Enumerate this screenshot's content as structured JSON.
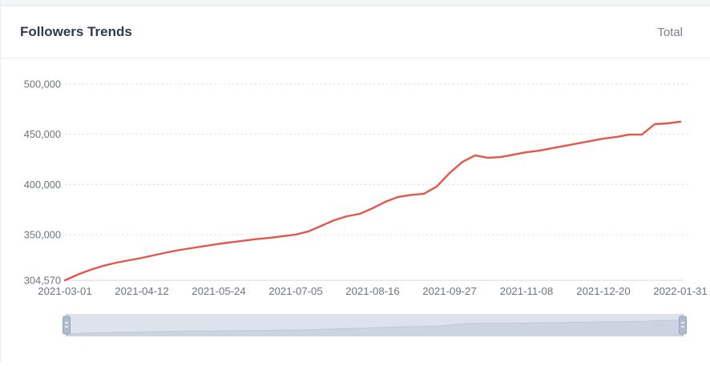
{
  "header": {
    "title": "Followers Trends",
    "total_label": "Total"
  },
  "colors": {
    "line": "#e4564c",
    "grid": "#d9dadd",
    "axis_line": "#d4d7db",
    "axis_label": "#6e747d",
    "title": "#333b48",
    "legend": "#7a8290",
    "slider_track": "#e7ebf1",
    "slider_shadow_fill": "#d3dae4",
    "slider_shadow_line": "#c2ccd9",
    "slider_handle": "#afbccd",
    "slider_handle_border": "#96a6ba"
  },
  "chart_data": {
    "type": "line",
    "title": "Followers Trends",
    "series_name": "Total",
    "x": [
      "2021-03-01",
      "2021-03-08",
      "2021-03-15",
      "2021-03-22",
      "2021-03-29",
      "2021-04-05",
      "2021-04-12",
      "2021-04-19",
      "2021-04-26",
      "2021-05-03",
      "2021-05-10",
      "2021-05-17",
      "2021-05-24",
      "2021-05-31",
      "2021-06-07",
      "2021-06-14",
      "2021-06-21",
      "2021-06-28",
      "2021-07-05",
      "2021-07-12",
      "2021-07-19",
      "2021-07-26",
      "2021-08-02",
      "2021-08-09",
      "2021-08-16",
      "2021-08-23",
      "2021-08-30",
      "2021-09-06",
      "2021-09-13",
      "2021-09-20",
      "2021-09-27",
      "2021-10-04",
      "2021-10-11",
      "2021-10-18",
      "2021-10-25",
      "2021-11-01",
      "2021-11-08",
      "2021-11-15",
      "2021-11-22",
      "2021-11-29",
      "2021-12-06",
      "2021-12-13",
      "2021-12-20",
      "2021-12-27",
      "2022-01-03",
      "2022-01-10",
      "2022-01-17",
      "2022-01-24",
      "2022-01-31"
    ],
    "values": [
      304570,
      310200,
      315000,
      319000,
      322100,
      324500,
      326900,
      329700,
      332500,
      334900,
      336900,
      338900,
      340900,
      342500,
      344100,
      345700,
      346900,
      348500,
      350100,
      353300,
      358800,
      364400,
      368400,
      370800,
      376400,
      382800,
      387600,
      389600,
      390800,
      398000,
      411400,
      422500,
      428900,
      426500,
      427300,
      429700,
      432100,
      433700,
      436100,
      438500,
      440900,
      443300,
      445700,
      447300,
      449700,
      449700,
      460100,
      460900,
      462500
    ],
    "ylim": [
      304570,
      500000
    ],
    "y_ticks": [
      {
        "value": 304570,
        "label": "304,570"
      },
      {
        "value": 350000,
        "label": "350,000"
      },
      {
        "value": 400000,
        "label": "400,000"
      },
      {
        "value": 450000,
        "label": "450,000"
      },
      {
        "value": 500000,
        "label": "500,000"
      }
    ],
    "x_tick_labels": [
      "2021-03-01",
      "2021-04-12",
      "2021-05-24",
      "2021-07-05",
      "2021-08-16",
      "2021-09-27",
      "2021-11-08",
      "2021-12-20",
      "2022-01-31"
    ],
    "grid": "horizontal-dotted",
    "legend_position": "top-right"
  },
  "slider": {
    "selected_start": "2021-03-01",
    "selected_end": "2022-01-31",
    "selection": "100%"
  }
}
